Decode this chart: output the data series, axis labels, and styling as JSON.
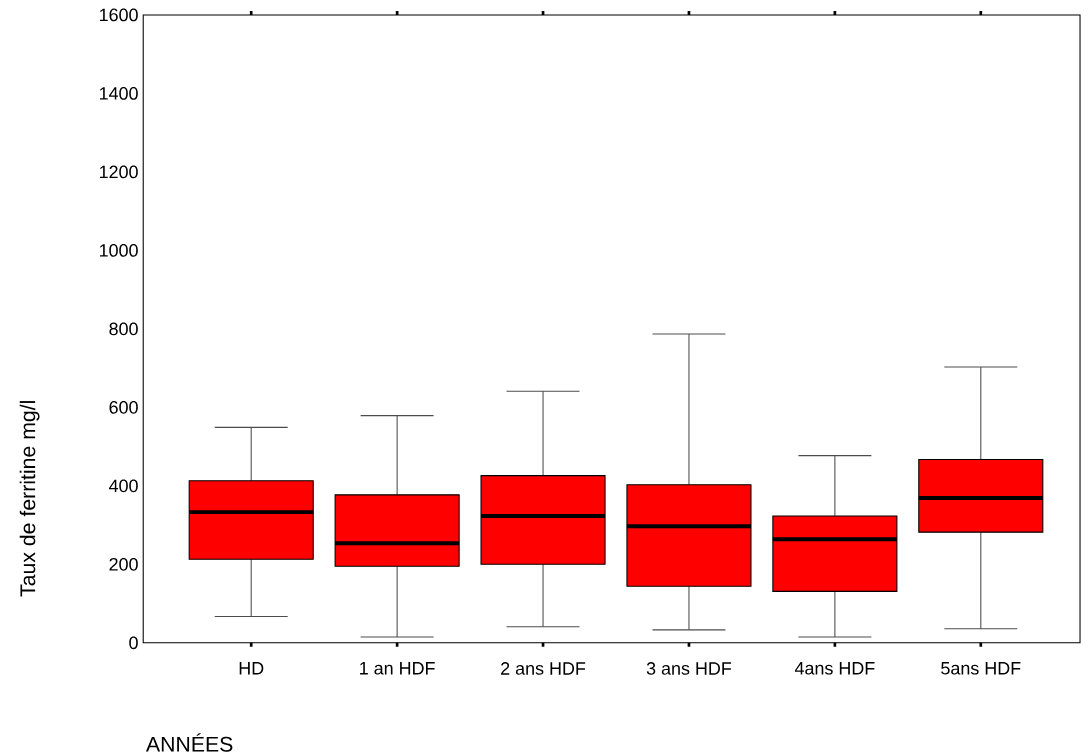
{
  "chart_data": {
    "type": "box",
    "xlabel": "ANNÉES",
    "ylabel": "Taux de ferritine mg/l",
    "categories": [
      "HD",
      "1 an HDF",
      "2 ans HDF",
      "3 ans HDF",
      "4ans HDF",
      "5ans HDF"
    ],
    "color": "#ff0000",
    "boxes": [
      {
        "low": 67,
        "q1": 213,
        "median": 333,
        "q3": 413,
        "high": 549
      },
      {
        "low": 15,
        "q1": 195,
        "median": 254,
        "q3": 377,
        "high": 579
      },
      {
        "low": 41,
        "q1": 200,
        "median": 323,
        "q3": 426,
        "high": 641
      },
      {
        "low": 33,
        "q1": 144,
        "median": 297,
        "q3": 403,
        "high": 787
      },
      {
        "low": 15,
        "q1": 131,
        "median": 264,
        "q3": 323,
        "high": 477
      },
      {
        "low": 36,
        "q1": 282,
        "median": 369,
        "q3": 467,
        "high": 703
      }
    ],
    "ylim": [
      0,
      1600
    ],
    "yticks": [
      0,
      200,
      400,
      600,
      800,
      1000,
      1200,
      1400,
      1600
    ]
  }
}
